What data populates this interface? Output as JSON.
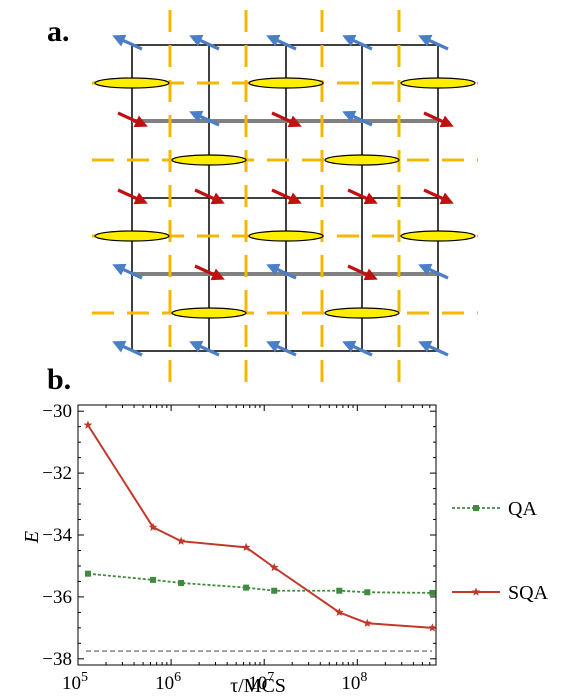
{
  "figure": {
    "panel_a_label": "a.",
    "panel_b_label": "b."
  },
  "lattice": {
    "colors": {
      "blue_arrow": "#4a7fc8",
      "red_arrow": "#c01010",
      "orange_line": "#f5b800",
      "yellow_ellipse": "#ffee00",
      "gray_bond": "#808080",
      "grid": "#000000"
    }
  },
  "chart_data": {
    "type": "line",
    "xlabel": "τ/MCS",
    "ylabel": "E",
    "x_scale": "log",
    "xlim": [
      100000,
      700000000
    ],
    "ylim": [
      -38.2,
      -29.8
    ],
    "x_ticks": [
      100000,
      1000000,
      10000000,
      100000000
    ],
    "x_tick_labels": [
      {
        "base": "10",
        "exp": "5"
      },
      {
        "base": "10",
        "exp": "6"
      },
      {
        "base": "10",
        "exp": "7"
      },
      {
        "base": "10",
        "exp": "8"
      }
    ],
    "y_ticks": [
      -30,
      -32,
      -34,
      -36,
      -38
    ],
    "y_tick_labels": [
      "−30",
      "−32",
      "−34",
      "−36",
      "−38"
    ],
    "reference_line": {
      "y": -37.75,
      "style": "dashed",
      "color": "#555555"
    },
    "series": [
      {
        "name": "QA",
        "color": "#3f8a3f",
        "style": "dotted",
        "marker": "square",
        "x": [
          128000,
          640000,
          1280000,
          6400000,
          12800000,
          64000000,
          128000000,
          640000000
        ],
        "y": [
          -35.25,
          -35.45,
          -35.55,
          -35.7,
          -35.8,
          -35.8,
          -35.85,
          -35.87
        ]
      },
      {
        "name": "SQA",
        "color": "#c0392b",
        "style": "solid",
        "marker": "star",
        "x": [
          128000,
          640000,
          1280000,
          6400000,
          12800000,
          64000000,
          128000000,
          640000000
        ],
        "y": [
          -30.45,
          -33.75,
          -34.2,
          -34.4,
          -35.05,
          -36.5,
          -36.85,
          -37.0
        ]
      }
    ]
  }
}
